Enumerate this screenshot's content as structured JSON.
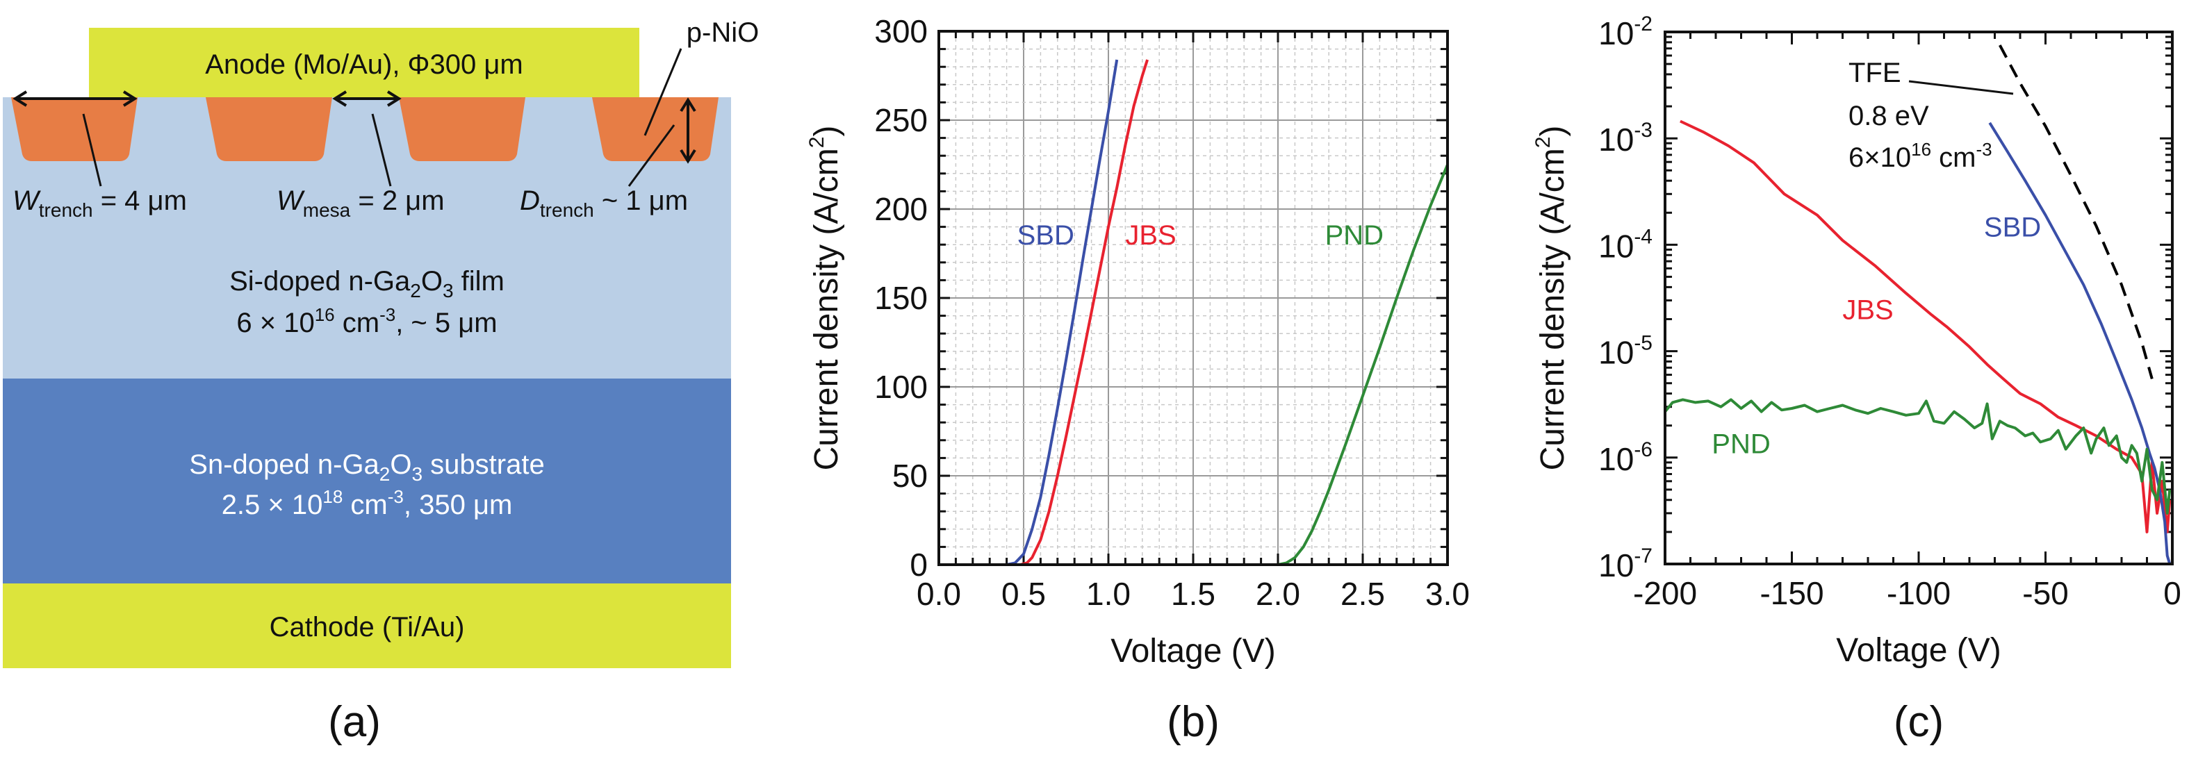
{
  "colors": {
    "anode": "#dce43c",
    "cathode": "#dce43c",
    "nio": "#e77d45",
    "film": "#bacfe6",
    "substrate": "#5880c0",
    "sbd": "#3a4fa8",
    "jbs": "#e8222f",
    "pnd": "#2e8a37",
    "tfe": "#000000"
  },
  "panel_a": {
    "label": "(a)",
    "anode": "Anode (Mo/Au), Φ300 μm",
    "p_nio": "p-NiO",
    "w_trench": {
      "sym": "W",
      "sub": "trench",
      "rest": " = 4 μm"
    },
    "w_mesa": {
      "sym": "W",
      "sub": "mesa",
      "rest": " = 2 μm"
    },
    "d_trench": {
      "sym": "D",
      "sub": "trench",
      "rest": " ~ 1 μm"
    },
    "film_line1": {
      "a": "Si-doped n-Ga",
      "s1": "2",
      "b": "O",
      "s2": "3",
      "c": " film"
    },
    "film_line2": {
      "a": "6 × 10",
      "sup1": "16",
      "b": " cm",
      "sup2": "-3",
      "c": ", ~ 5 μm"
    },
    "sub_line1": {
      "a": "Sn-doped n-Ga",
      "s1": "2",
      "b": "O",
      "s2": "3",
      "c": " substrate"
    },
    "sub_line2": {
      "a": "2.5 × 10",
      "sup1": "18",
      "b": " cm",
      "sup2": "-3",
      "c": ", 350 μm"
    },
    "cathode": "Cathode (Ti/Au)"
  },
  "chart_data": [
    {
      "id": "b",
      "panel_label": "(b)",
      "type": "line",
      "title": "",
      "xlabel": "Voltage (V)",
      "ylabel": "Current density (A/cm²)",
      "ylabel_main": "Current density (A/cm",
      "ylabel_sup": "2",
      "ylabel_end": ")",
      "xlim": [
        0,
        3.0
      ],
      "ylim": [
        0,
        300
      ],
      "yscale": "linear",
      "xticks": [
        0.0,
        0.5,
        1.0,
        1.5,
        2.0,
        2.5,
        3.0
      ],
      "xtick_labels": [
        "0.0",
        "0.5",
        "1.0",
        "1.5",
        "2.0",
        "2.5",
        "3.0"
      ],
      "yticks": [
        0,
        50,
        100,
        150,
        200,
        250,
        300
      ],
      "ytick_labels": [
        "0",
        "50",
        "100",
        "150",
        "200",
        "250",
        "300"
      ],
      "grid": true,
      "series": [
        {
          "name": "SBD",
          "x": [
            0,
            0.4,
            0.45,
            0.5,
            0.55,
            0.6,
            0.65,
            0.7,
            0.75,
            0.8,
            0.85,
            0.9,
            0.95,
            1.0,
            1.05
          ],
          "y": [
            0,
            0,
            1,
            6,
            20,
            38,
            62,
            88,
            115,
            143,
            172,
            200,
            228,
            255,
            284
          ]
        },
        {
          "name": "JBS",
          "x": [
            0,
            0.48,
            0.52,
            0.55,
            0.6,
            0.65,
            0.7,
            0.75,
            0.8,
            0.85,
            0.9,
            0.95,
            1.0,
            1.05,
            1.1,
            1.15,
            1.2,
            1.23
          ],
          "y": [
            0,
            0,
            1,
            4,
            14,
            30,
            50,
            72,
            95,
            118,
            142,
            166,
            190,
            212,
            236,
            258,
            275,
            284
          ]
        },
        {
          "name": "PND",
          "x": [
            0,
            2.0,
            2.05,
            2.1,
            2.15,
            2.2,
            2.25,
            2.3,
            2.35,
            2.4,
            2.5,
            2.6,
            2.7,
            2.8,
            2.9,
            3.0
          ],
          "y": [
            0,
            0,
            1,
            4,
            10,
            19,
            30,
            42,
            55,
            68,
            95,
            122,
            150,
            177,
            202,
            225
          ]
        }
      ],
      "annotations": [
        {
          "text": "SBD",
          "series": "SBD",
          "x": 0.63,
          "y": 180
        },
        {
          "text": "JBS",
          "series": "JBS",
          "x": 1.25,
          "y": 180
        },
        {
          "text": "PND",
          "series": "PND",
          "x": 2.45,
          "y": 180
        }
      ]
    },
    {
      "id": "c",
      "panel_label": "(c)",
      "type": "line",
      "title": "",
      "xlabel": "Voltage (V)",
      "ylabel": "Current density (A/cm²)",
      "ylabel_main": "Current density (A/cm",
      "ylabel_sup": "2",
      "ylabel_end": ")",
      "xlim": [
        -200,
        0
      ],
      "ylim": [
        1e-07,
        0.01
      ],
      "yscale": "log",
      "xticks": [
        -200,
        -150,
        -100,
        -50,
        0
      ],
      "xtick_labels": [
        "-200",
        "-150",
        "-100",
        "-50",
        "0"
      ],
      "yticks_exp": [
        -7,
        -6,
        -5,
        -4,
        -3,
        -2
      ],
      "ytick_base": "10",
      "grid": false,
      "series": [
        {
          "name": "JBS",
          "x": [
            -194,
            -185,
            -175,
            -165,
            -153,
            -140,
            -130,
            -117,
            -105,
            -95,
            -89,
            -80,
            -73,
            -67,
            -60,
            -52,
            -45,
            -38,
            -30,
            -22,
            -16,
            -12,
            -10,
            -8,
            -6,
            -4,
            -2,
            -1
          ],
          "y": [
            0.00145,
            0.00115,
            0.00085,
            0.00059,
            0.0003,
            0.00019,
            0.00011,
            6.3e-05,
            3.5e-05,
            2.2e-05,
            1.7e-05,
            1.1e-05,
            7.5e-06,
            5.6e-06,
            4e-06,
            3.2e-06,
            2.4e-06,
            2e-06,
            1.6e-06,
            1.2e-06,
            1e-06,
            7e-07,
            2e-07,
            9e-07,
            3e-07,
            6e-07,
            2e-07,
            4e-07
          ]
        },
        {
          "name": "SBD",
          "x": [
            -72,
            -65,
            -58,
            -50,
            -42,
            -35,
            -28,
            -22,
            -16,
            -12,
            -9,
            -7,
            -5,
            -3,
            -2,
            -1
          ],
          "y": [
            0.0014,
            0.00075,
            0.0004,
            0.00019,
            8.5e-05,
            4.2e-05,
            1.8e-05,
            8e-06,
            3.5e-06,
            1.9e-06,
            1.1e-06,
            8e-07,
            5e-07,
            2.5e-07,
            1.2e-07,
            1e-07
          ]
        },
        {
          "name": "PND",
          "x": [
            -200,
            -197,
            -193,
            -188,
            -183,
            -178,
            -174,
            -170,
            -166,
            -162,
            -158,
            -154,
            -150,
            -145,
            -140,
            -135,
            -130,
            -125,
            -120,
            -115,
            -110,
            -105,
            -100,
            -97,
            -94,
            -90,
            -86,
            -82,
            -78,
            -75,
            -73,
            -71,
            -68,
            -65,
            -62,
            -58,
            -55,
            -52,
            -48,
            -45,
            -42,
            -38,
            -35,
            -32,
            -30,
            -27,
            -25,
            -22,
            -20,
            -18,
            -16,
            -14,
            -12,
            -10,
            -8,
            -6,
            -4,
            -2,
            -1
          ],
          "y": [
            2.7e-06,
            3.3e-06,
            3.5e-06,
            3.3e-06,
            3.4e-06,
            3e-06,
            3.5e-06,
            2.9e-06,
            3.4e-06,
            2.7e-06,
            3.3e-06,
            2.8e-06,
            2.9e-06,
            3.1e-06,
            2.7e-06,
            2.9e-06,
            3.1e-06,
            2.8e-06,
            2.6e-06,
            2.9e-06,
            2.7e-06,
            2.5e-06,
            2.6e-06,
            3.4e-06,
            2.2e-06,
            2.1e-06,
            2.7e-06,
            2.3e-06,
            1.9e-06,
            2.1e-06,
            3.2e-06,
            1.5e-06,
            2.2e-06,
            2e-06,
            1.9e-06,
            1.6e-06,
            1.7e-06,
            1.4e-06,
            1.5e-06,
            1.8e-06,
            1.2e-06,
            1.6e-06,
            1.9e-06,
            1.1e-06,
            1.5e-06,
            1.9e-06,
            1.3e-06,
            1.6e-06,
            1e-06,
            9e-07,
            1.3e-06,
            1.1e-06,
            6e-07,
            1.2e-06,
            5e-07,
            4e-07,
            9e-07,
            3e-07,
            5e-07
          ]
        },
        {
          "name": "TFE",
          "style": "dashed",
          "x": [
            -68,
            -60,
            -50,
            -40,
            -30,
            -20,
            -12,
            -8
          ],
          "y": [
            0.0075,
            0.0033,
            0.0013,
            0.00045,
            0.00015,
            4.2e-05,
            1.2e-05,
            5.5e-06
          ]
        }
      ],
      "annotations": [
        {
          "text": "SBD",
          "series": "SBD",
          "x": -63,
          "y": 0.00012
        },
        {
          "text": "JBS",
          "series": "JBS",
          "x": -120,
          "y": 2e-05
        },
        {
          "text": "PND",
          "series": "PND",
          "x": -170,
          "y": 1.1e-06
        }
      ],
      "tfe_label": {
        "line1": "TFE",
        "line2": "0.8 eV",
        "line3_a": "6×10",
        "line3_sup": "16",
        "line3_b": " cm",
        "line3_sup2": "-3"
      }
    }
  ]
}
